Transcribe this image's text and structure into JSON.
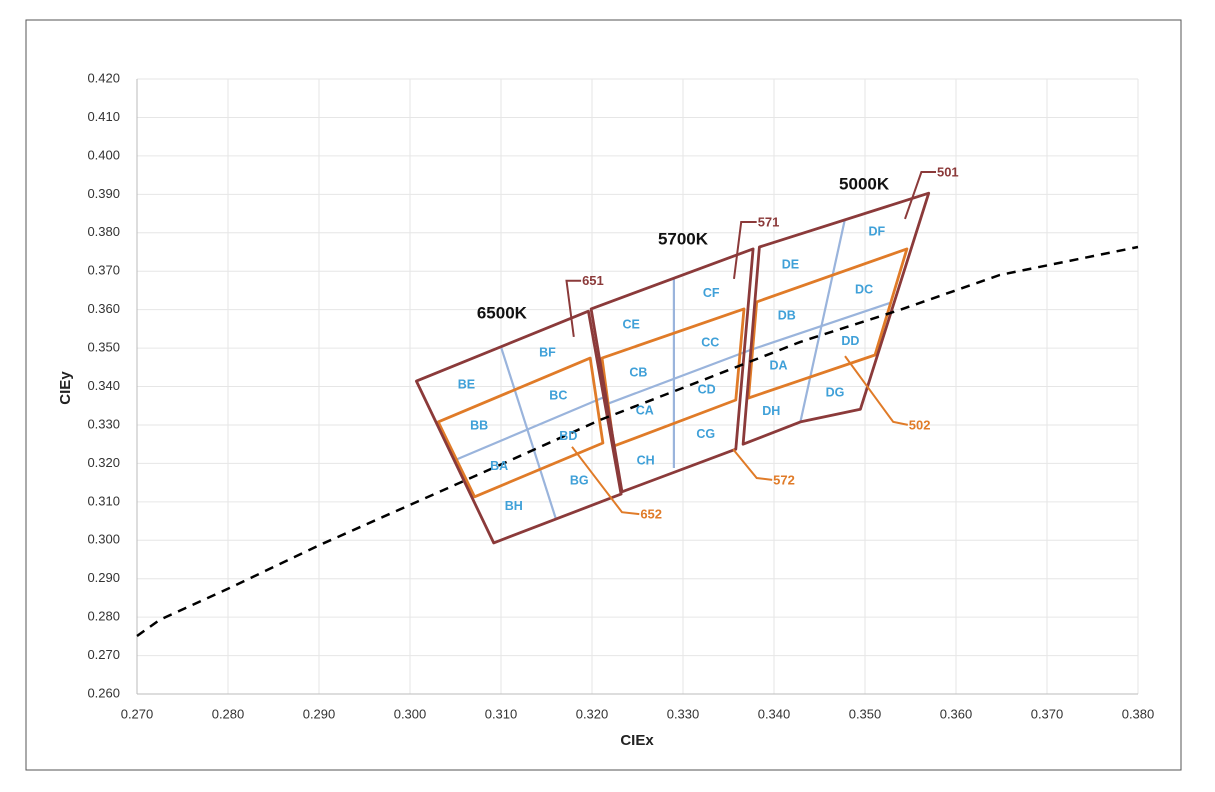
{
  "chart_data": {
    "type": "line",
    "xlabel": "CIEx",
    "ylabel": "CIEy",
    "xlim": [
      0.27,
      0.38
    ],
    "ylim": [
      0.26,
      0.42
    ],
    "grid": true,
    "xticks": [
      {
        "value": 0.27,
        "label": "0.270"
      },
      {
        "value": 0.28,
        "label": "0.280"
      },
      {
        "value": 0.29,
        "label": "0.290"
      },
      {
        "value": 0.3,
        "label": "0.300"
      },
      {
        "value": 0.31,
        "label": "0.310"
      },
      {
        "value": 0.32,
        "label": "0.320"
      },
      {
        "value": 0.33,
        "label": "0.330"
      },
      {
        "value": 0.34,
        "label": "0.340"
      },
      {
        "value": 0.35,
        "label": "0.350"
      },
      {
        "value": 0.36,
        "label": "0.360"
      },
      {
        "value": 0.37,
        "label": "0.370"
      },
      {
        "value": 0.38,
        "label": "0.380"
      }
    ],
    "yticks": [
      {
        "value": 0.26,
        "label": "0.260"
      },
      {
        "value": 0.27,
        "label": "0.270"
      },
      {
        "value": 0.28,
        "label": "0.280"
      },
      {
        "value": 0.29,
        "label": "0.290"
      },
      {
        "value": 0.3,
        "label": "0.300"
      },
      {
        "value": 0.31,
        "label": "0.310"
      },
      {
        "value": 0.32,
        "label": "0.320"
      },
      {
        "value": 0.33,
        "label": "0.330"
      },
      {
        "value": 0.34,
        "label": "0.340"
      },
      {
        "value": 0.35,
        "label": "0.350"
      },
      {
        "value": 0.36,
        "label": "0.360"
      },
      {
        "value": 0.37,
        "label": "0.370"
      },
      {
        "value": 0.38,
        "label": "0.380"
      },
      {
        "value": 0.39,
        "label": "0.390"
      },
      {
        "value": 0.4,
        "label": "0.400"
      },
      {
        "value": 0.41,
        "label": "0.410"
      },
      {
        "value": 0.42,
        "label": "0.420"
      }
    ],
    "series": [
      {
        "color": "#9ab4dc",
        "closed": false,
        "dashed": false,
        "x": [
          0.3007,
          0.3196
        ],
        "y": [
          0.3414,
          0.3596
        ]
      },
      {
        "color": "#9ab4dc",
        "closed": false,
        "dashed": false,
        "x": [
          0.31,
          0.316
        ],
        "y": [
          0.3503,
          0.3058
        ]
      },
      {
        "color": "#9ab4dc",
        "closed": false,
        "dashed": false,
        "x": [
          0.3052,
          0.3214
        ],
        "y": [
          0.3211,
          0.3373
        ]
      },
      {
        "color": "#9ab4dc",
        "closed": false,
        "dashed": false,
        "x": [
          0.3199,
          0.3377
        ],
        "y": [
          0.3602,
          0.3758
        ]
      },
      {
        "color": "#9ab4dc",
        "closed": false,
        "dashed": false,
        "x": [
          0.329,
          0.329
        ],
        "y": [
          0.368,
          0.3188
        ]
      },
      {
        "color": "#9ab4dc",
        "closed": false,
        "dashed": false,
        "x": [
          0.3216,
          0.3374
        ],
        "y": [
          0.3354,
          0.3495
        ]
      },
      {
        "color": "#9ab4dc",
        "closed": false,
        "dashed": false,
        "x": [
          0.3384,
          0.357
        ],
        "y": [
          0.3763,
          0.3903
        ]
      },
      {
        "color": "#9ab4dc",
        "closed": false,
        "dashed": false,
        "x": [
          0.3478,
          0.3429
        ],
        "y": [
          0.3836,
          0.3308
        ]
      },
      {
        "color": "#9ab4dc",
        "closed": false,
        "dashed": false,
        "x": [
          0.3374,
          0.3527
        ],
        "y": [
          0.3495,
          0.3617
        ]
      },
      {
        "color": "#e07b28",
        "closed": true,
        "dashed": false,
        "x": [
          0.3031,
          0.3198,
          0.3212,
          0.3071
        ],
        "y": [
          0.3308,
          0.3474,
          0.3253,
          0.3113
        ]
      },
      {
        "color": "#e07b28",
        "closed": true,
        "dashed": false,
        "x": [
          0.3211,
          0.3367,
          0.3358,
          0.3224
        ],
        "y": [
          0.3474,
          0.3602,
          0.3365,
          0.3245
        ]
      },
      {
        "color": "#e07b28",
        "closed": true,
        "dashed": false,
        "x": [
          0.3381,
          0.3546,
          0.3511,
          0.3372
        ],
        "y": [
          0.362,
          0.3758,
          0.3482,
          0.337
        ]
      },
      {
        "color": "#8b3a3a",
        "closed": true,
        "dashed": false,
        "x": [
          0.3007,
          0.3196,
          0.3232,
          0.3092
        ],
        "y": [
          0.3414,
          0.3596,
          0.312,
          0.2993
        ]
      },
      {
        "color": "#8b3a3a",
        "closed": true,
        "dashed": false,
        "x": [
          0.3199,
          0.3377,
          0.3358,
          0.3233
        ],
        "y": [
          0.3602,
          0.3758,
          0.3237,
          0.3126
        ]
      },
      {
        "color": "#8b3a3a",
        "closed": true,
        "dashed": false,
        "x": [
          0.3384,
          0.357,
          0.3495,
          0.3429,
          0.3366
        ],
        "y": [
          0.3763,
          0.3903,
          0.3341,
          0.3308,
          0.325
        ]
      },
      {
        "color": "#000000",
        "closed": false,
        "dashed": true,
        "x": [
          0.27,
          0.2725,
          0.2802,
          0.2901,
          0.3,
          0.3099,
          0.3209,
          0.3319,
          0.3429,
          0.3538,
          0.3648,
          0.38
        ],
        "y": [
          0.2751,
          0.2793,
          0.2876,
          0.2988,
          0.3092,
          0.3196,
          0.3313,
          0.3414,
          0.3516,
          0.3599,
          0.369,
          0.3763
        ]
      }
    ],
    "callouts": [
      {
        "label": "651",
        "color": "#8b3a3a",
        "x": [
          0.318,
          0.3172,
          0.3188
        ],
        "y": [
          0.3529,
          0.3675,
          0.3675
        ]
      },
      {
        "label": "571",
        "color": "#8b3a3a",
        "x": [
          0.3356,
          0.3364,
          0.3381
        ],
        "y": [
          0.368,
          0.3828,
          0.3828
        ]
      },
      {
        "label": "501",
        "color": "#8b3a3a",
        "x": [
          0.3544,
          0.3562,
          0.3578
        ],
        "y": [
          0.3836,
          0.3958,
          0.3958
        ]
      },
      {
        "label": "652",
        "color": "#e07b28",
        "x": [
          0.3178,
          0.3233,
          0.3252
        ],
        "y": [
          0.3243,
          0.3073,
          0.3068
        ]
      },
      {
        "label": "572",
        "color": "#e07b28",
        "x": [
          0.3355,
          0.3381,
          0.3398
        ],
        "y": [
          0.3237,
          0.3162,
          0.3157
        ]
      },
      {
        "label": "502",
        "color": "#e07b28",
        "x": [
          0.3478,
          0.3531,
          0.3547
        ],
        "y": [
          0.3479,
          0.3308,
          0.33
        ]
      }
    ],
    "cct_labels": [
      {
        "text": "6500K",
        "x": 0.3101,
        "y": 0.3589
      },
      {
        "text": "5700K",
        "x": 0.33,
        "y": 0.3781
      },
      {
        "text": "5000K",
        "x": 0.3499,
        "y": 0.3924
      }
    ],
    "bin_color": "#3fa0d8",
    "bin_labels": [
      {
        "text": "BE",
        "x": 0.3062,
        "y": 0.3404
      },
      {
        "text": "BF",
        "x": 0.3151,
        "y": 0.3487
      },
      {
        "text": "BC",
        "x": 0.3163,
        "y": 0.3375
      },
      {
        "text": "BB",
        "x": 0.3076,
        "y": 0.3297
      },
      {
        "text": "BD",
        "x": 0.3174,
        "y": 0.3269
      },
      {
        "text": "BA",
        "x": 0.3098,
        "y": 0.3191
      },
      {
        "text": "BG",
        "x": 0.3186,
        "y": 0.3154
      },
      {
        "text": "BH",
        "x": 0.3114,
        "y": 0.3087
      },
      {
        "text": "CE",
        "x": 0.3243,
        "y": 0.356
      },
      {
        "text": "CF",
        "x": 0.3331,
        "y": 0.3641
      },
      {
        "text": "CB",
        "x": 0.3251,
        "y": 0.3435
      },
      {
        "text": "CC",
        "x": 0.333,
        "y": 0.3513
      },
      {
        "text": "CA",
        "x": 0.3258,
        "y": 0.3336
      },
      {
        "text": "CD",
        "x": 0.3326,
        "y": 0.3391
      },
      {
        "text": "CH",
        "x": 0.3259,
        "y": 0.3206
      },
      {
        "text": "CG",
        "x": 0.3325,
        "y": 0.3274
      },
      {
        "text": "DE",
        "x": 0.3418,
        "y": 0.3716
      },
      {
        "text": "DF",
        "x": 0.3513,
        "y": 0.3802
      },
      {
        "text": "DB",
        "x": 0.3414,
        "y": 0.3583
      },
      {
        "text": "DC",
        "x": 0.3499,
        "y": 0.3651
      },
      {
        "text": "DA",
        "x": 0.3405,
        "y": 0.3453
      },
      {
        "text": "DD",
        "x": 0.3484,
        "y": 0.3516
      },
      {
        "text": "DH",
        "x": 0.3397,
        "y": 0.3334
      },
      {
        "text": "DG",
        "x": 0.3467,
        "y": 0.3383
      }
    ]
  }
}
